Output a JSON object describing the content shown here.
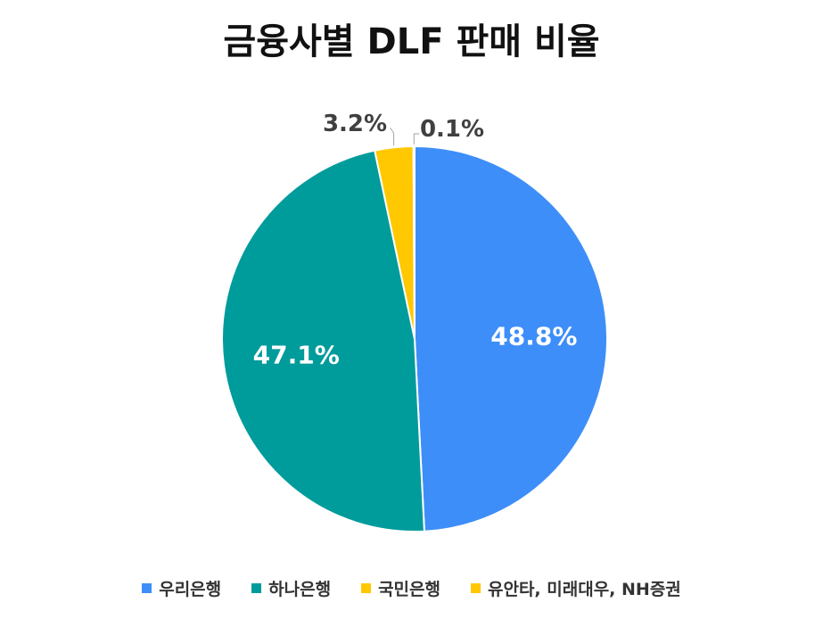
{
  "chart_data": {
    "type": "pie",
    "title": "금융사별 DLF 판매 비율",
    "legend_position": "bottom",
    "slices": [
      {
        "name": "우리은행",
        "value": 48.8,
        "label": "48.8%",
        "color": "#3d8ef8"
      },
      {
        "name": "하나은행",
        "value": 47.1,
        "label": "47.1%",
        "color": "#009b9b"
      },
      {
        "name": "국민은행",
        "value": 3.2,
        "label": "3.2%",
        "color": "#ffc800"
      },
      {
        "name": "유안타, 미래대우, NH증권",
        "value": 0.1,
        "label": "0.1%",
        "color": "#ffc800"
      }
    ]
  }
}
